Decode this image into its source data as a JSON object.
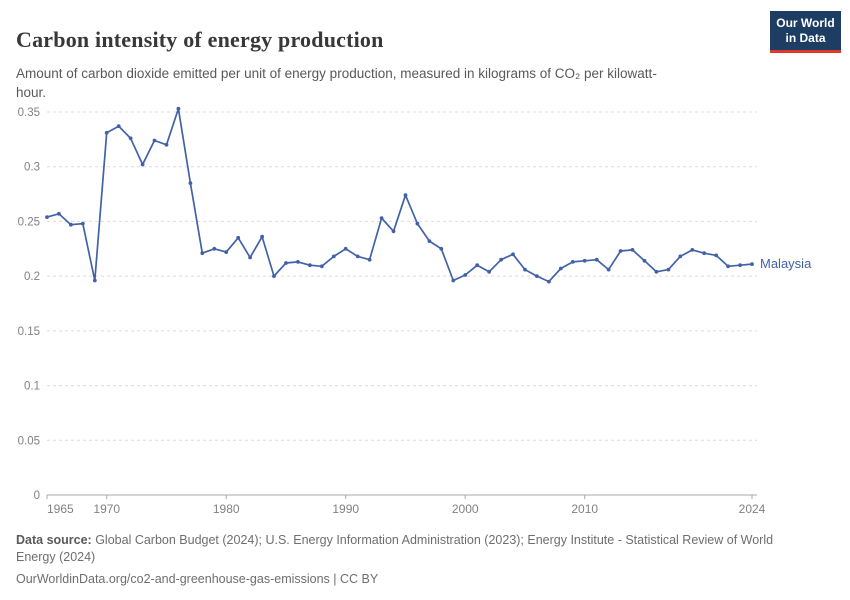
{
  "header": {
    "title": "Carbon intensity of energy production",
    "subtitle": "Amount of carbon dioxide emitted per unit of energy production, measured in kilograms of CO₂ per kilowatt-hour."
  },
  "logo": {
    "line1": "Our World",
    "line2": "in Data"
  },
  "colors": {
    "line": "#4262a8",
    "logo_bg": "#1d3d63",
    "logo_red": "#dc3a2d",
    "gridline": "#dcdcdc",
    "axis": "#a8a8a8",
    "tick_text": "#818181"
  },
  "chart_data": {
    "type": "line",
    "title": "Carbon intensity of energy production",
    "xlabel": "",
    "ylabel": "kilograms of CO₂ per kilowatt-hour",
    "xlim": [
      1965,
      2024
    ],
    "ylim": [
      0,
      0.35
    ],
    "grid": "horizontal-dashed",
    "legend_position": "end-of-line-label",
    "line_color": "#4262a8",
    "y_ticks": [
      {
        "v": 0,
        "label": "0"
      },
      {
        "v": 0.05,
        "label": "0.05"
      },
      {
        "v": 0.1,
        "label": "0.1"
      },
      {
        "v": 0.15,
        "label": "0.15"
      },
      {
        "v": 0.2,
        "label": "0.2"
      },
      {
        "v": 0.25,
        "label": "0.25"
      },
      {
        "v": 0.3,
        "label": "0.3"
      },
      {
        "v": 0.35,
        "label": "0.35"
      }
    ],
    "x_ticks": [
      {
        "v": 1965,
        "label": "1965"
      },
      {
        "v": 1970,
        "label": "1970"
      },
      {
        "v": 1980,
        "label": "1980"
      },
      {
        "v": 1990,
        "label": "1990"
      },
      {
        "v": 2000,
        "label": "2000"
      },
      {
        "v": 2010,
        "label": "2010"
      },
      {
        "v": 2024,
        "label": "2024"
      }
    ],
    "series": [
      {
        "name": "Malaysia",
        "x": [
          1965,
          1966,
          1967,
          1968,
          1969,
          1970,
          1971,
          1972,
          1973,
          1974,
          1975,
          1976,
          1977,
          1978,
          1979,
          1980,
          1981,
          1982,
          1983,
          1984,
          1985,
          1986,
          1987,
          1988,
          1989,
          1990,
          1991,
          1992,
          1993,
          1994,
          1995,
          1996,
          1997,
          1998,
          1999,
          2000,
          2001,
          2002,
          2003,
          2004,
          2005,
          2006,
          2007,
          2008,
          2009,
          2010,
          2011,
          2012,
          2013,
          2014,
          2015,
          2016,
          2017,
          2018,
          2019,
          2020,
          2021,
          2022,
          2023,
          2024
        ],
        "values": [
          0.254,
          0.257,
          0.247,
          0.248,
          0.196,
          0.331,
          0.337,
          0.326,
          0.302,
          0.324,
          0.32,
          0.353,
          0.285,
          0.221,
          0.225,
          0.222,
          0.235,
          0.217,
          0.236,
          0.2,
          0.212,
          0.213,
          0.21,
          0.209,
          0.218,
          0.225,
          0.218,
          0.215,
          0.253,
          0.241,
          0.274,
          0.248,
          0.232,
          0.225,
          0.196,
          0.201,
          0.21,
          0.204,
          0.215,
          0.22,
          0.206,
          0.2,
          0.195,
          0.207,
          0.213,
          0.214,
          0.215,
          0.206,
          0.223,
          0.224,
          0.214,
          0.204,
          0.206,
          0.218,
          0.224,
          0.221,
          0.219,
          0.209,
          0.21,
          0.211
        ]
      }
    ]
  },
  "footer": {
    "source_label": "Data source:",
    "source_text": " Global Carbon Budget (2024); U.S. Energy Information Administration (2023); Energy Institute - Statistical Review of World Energy (2024)",
    "license_line": "OurWorldinData.org/co2-and-greenhouse-gas-emissions | CC BY"
  }
}
